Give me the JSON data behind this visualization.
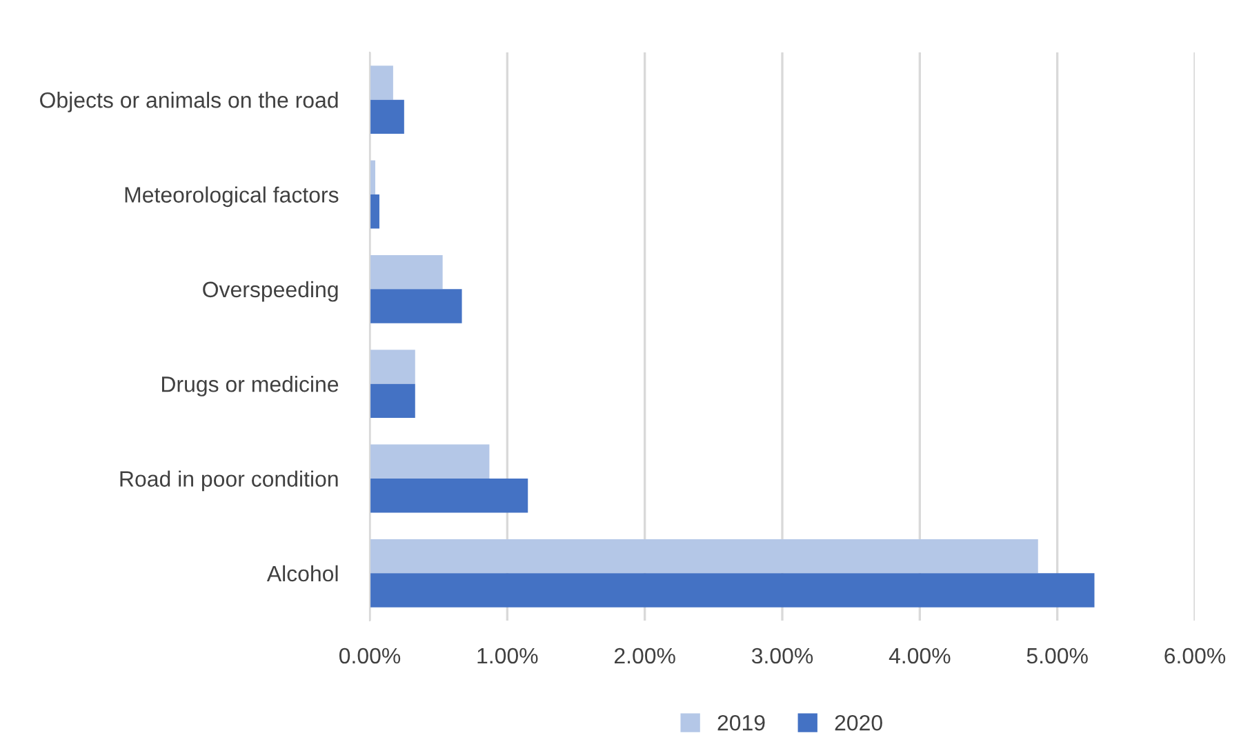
{
  "chart_data": {
    "type": "bar",
    "orientation": "horizontal",
    "categories": [
      "Objects or animals on the road",
      "Meteorological factors",
      "Overspeeding",
      "Drugs or medicine",
      "Road in poor condition",
      "Alcohol"
    ],
    "series": [
      {
        "name": "2019",
        "color": "#b4c7e7",
        "values": [
          0.17,
          0.04,
          0.53,
          0.33,
          0.87,
          4.86
        ]
      },
      {
        "name": "2020",
        "color": "#4472c4",
        "values": [
          0.25,
          0.07,
          0.67,
          0.33,
          1.15,
          5.27
        ]
      }
    ],
    "xlim": [
      0,
      6
    ],
    "xticks": [
      {
        "value": 0,
        "label": "0.00%"
      },
      {
        "value": 1,
        "label": "1.00%"
      },
      {
        "value": 2,
        "label": "2.00%"
      },
      {
        "value": 3,
        "label": "3.00%"
      },
      {
        "value": 4,
        "label": "4.00%"
      },
      {
        "value": 5,
        "label": "5.00%"
      },
      {
        "value": 6,
        "label": "6.00%"
      }
    ],
    "grid": "x",
    "legend": "bottom"
  }
}
